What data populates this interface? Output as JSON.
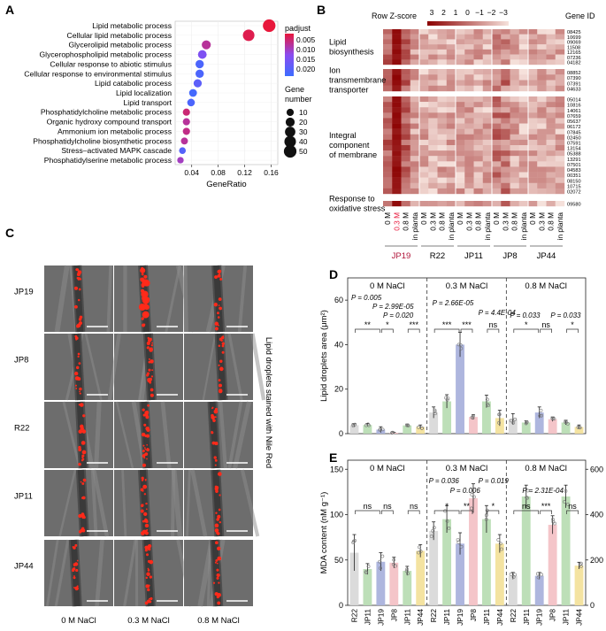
{
  "panels": {
    "A": "A",
    "B": "B",
    "C": "C",
    "D": "D",
    "E": "E"
  },
  "colors": {
    "bar_gray": "#d9d9d9",
    "bar_green": "#b9ddb4",
    "bar_blue": "#aab2dc",
    "bar_pink": "#f3c2c6",
    "bar_yellow": "#f3e19c",
    "dot_red": "#e8173b",
    "dot_purple": "#8a4cf0",
    "dot_blue": "#3c6cff",
    "heat_dark": "#8b0000",
    "heat_light": "#f6e2dc",
    "fluor": "#ff2a1a"
  },
  "chart_data": [
    {
      "id": "A",
      "type": "scatter",
      "title": "",
      "xlabel": "GeneRatio",
      "ylabel": "",
      "xlim": [
        0.015,
        0.17
      ],
      "xticks": [
        0.04,
        0.08,
        0.12,
        0.16
      ],
      "xtick_labels": [
        "0.04",
        "0.08",
        "0.12",
        "0.16"
      ],
      "terms": [
        {
          "term": "Lipid metabolic process",
          "gene_ratio": 0.157,
          "count": 50,
          "padj": 0.001
        },
        {
          "term": "Cellular lipid metabolic process",
          "gene_ratio": 0.126,
          "count": 40,
          "padj": 0.002
        },
        {
          "term": "Glycerolipid metabolic process",
          "gene_ratio": 0.062,
          "count": 20,
          "padj": 0.006
        },
        {
          "term": "Glycerophospholipid metabolic process",
          "gene_ratio": 0.056,
          "count": 18,
          "padj": 0.012
        },
        {
          "term": "Cellular response to abiotic stimulus",
          "gene_ratio": 0.052,
          "count": 16,
          "padj": 0.018
        },
        {
          "term": "Cellular response to environmental stimulus",
          "gene_ratio": 0.052,
          "count": 16,
          "padj": 0.018
        },
        {
          "term": "Lipid catabolic process",
          "gene_ratio": 0.049,
          "count": 15,
          "padj": 0.016
        },
        {
          "term": "Lipid localization",
          "gene_ratio": 0.042,
          "count": 13,
          "padj": 0.019
        },
        {
          "term": "Lipid transport",
          "gene_ratio": 0.039,
          "count": 12,
          "padj": 0.018
        },
        {
          "term": "Phosphatidylcholine metabolic process",
          "gene_ratio": 0.032,
          "count": 10,
          "padj": 0.004
        },
        {
          "term": "Organic hydroxy compound transport",
          "gene_ratio": 0.032,
          "count": 10,
          "padj": 0.006
        },
        {
          "term": "Ammonium ion metabolic process",
          "gene_ratio": 0.032,
          "count": 10,
          "padj": 0.005
        },
        {
          "term": "Phosphatidylcholine biosynthetic process",
          "gene_ratio": 0.029,
          "count": 9,
          "padj": 0.006
        },
        {
          "term": "Stress–activated MAPK cascade",
          "gene_ratio": 0.026,
          "count": 8,
          "padj": 0.017
        },
        {
          "term": "Phosphatidylserine metabolic process",
          "gene_ratio": 0.023,
          "count": 7,
          "padj": 0.008
        }
      ],
      "legend_padj": {
        "title": "padjust",
        "labels": [
          "0.005",
          "0.010",
          "0.015",
          "0.020"
        ]
      },
      "legend_count": {
        "title_line1": "Gene",
        "title_line2": "number",
        "values": [
          10,
          20,
          30,
          40,
          50
        ],
        "labels": [
          "10",
          "20",
          "30",
          "40",
          "50"
        ]
      }
    },
    {
      "id": "B",
      "type": "heatmap",
      "scale_label": "Row Z-score",
      "scale_ticks": [
        "3",
        "2",
        "1",
        "0",
        "−1",
        "−2",
        "−3"
      ],
      "gene_id_header": "Gene ID",
      "groups": [
        {
          "label_lines": [
            "Lipid",
            "biosynthesis"
          ],
          "ids": [
            "08425",
            "10699",
            "09069",
            "11508",
            "12165",
            "07236",
            "04182"
          ]
        },
        {
          "label_lines": [
            "Ion",
            "transmembrane",
            "transporter"
          ],
          "ids": [
            "08852",
            "07390",
            "07391",
            "04633"
          ]
        },
        {
          "label_lines": [
            "Integral",
            "component",
            "of membrane"
          ],
          "ids": [
            "05014",
            "10816",
            "14061",
            "07659",
            "05637",
            "06172",
            "07845",
            "02450",
            "07591",
            "13154",
            "05388",
            "13291",
            "07501",
            "04583",
            "00351",
            "08150",
            "10715",
            "02072"
          ]
        },
        {
          "label_lines": [
            "Response to",
            "oxidative stress"
          ],
          "ids": [
            "09580"
          ]
        }
      ],
      "columns": [
        "0 M",
        "0.3 M",
        "0.8 M",
        "in planta",
        "0 M",
        "0.3 M",
        "0.8 M",
        "in planta",
        "0 M",
        "0.3 M",
        "0.8 M",
        "in planta",
        "0 M",
        "0.3 M",
        "0.8 M",
        "in planta",
        "0 M",
        "0.3 M",
        "0.8 M",
        "in planta"
      ],
      "strains": [
        "JP19",
        "R22",
        "JP11",
        "JP8",
        "JP44"
      ]
    },
    {
      "id": "D",
      "type": "bar",
      "ylabel": "Lipid droplets area (μm²)",
      "ylim": [
        0,
        70
      ],
      "yticks": [
        "0",
        "20",
        "40",
        "60"
      ],
      "sections": [
        {
          "title": "0 M NaCl",
          "categories": [
            "R22",
            "JP11",
            "JP19",
            "JP8",
            "JP11",
            "JP44"
          ],
          "values": [
            3.8,
            3.9,
            1.8,
            0.4,
            3.7,
            3.0
          ],
          "errors": [
            0.6,
            0.7,
            1.3,
            0.2,
            0.6,
            0.9
          ],
          "sig": [
            "**",
            "*",
            "***"
          ],
          "pvals": [
            "P = 0.005",
            "P = 2.99E-05",
            "P = 0.020"
          ]
        },
        {
          "title": "0.3 M NaCl",
          "categories": [
            "R22",
            "JP11",
            "JP19",
            "JP8",
            "JP11",
            "JP44"
          ],
          "values": [
            9.5,
            14.5,
            40.0,
            7.5,
            14.5,
            7.0
          ],
          "errors": [
            2.5,
            3.0,
            5.5,
            1.0,
            2.8,
            3.5
          ],
          "sig": [
            "***",
            "***",
            "ns"
          ],
          "pvals": [
            "P = 2.66E-05",
            "P = 4.4E-04"
          ]
        },
        {
          "title": "0.8 M NaCl",
          "categories": [
            "R22",
            "JP11",
            "JP19",
            "JP8",
            "JP11",
            "JP44"
          ],
          "values": [
            6.5,
            5.0,
            9.5,
            6.5,
            5.0,
            3.0
          ],
          "errors": [
            2.5,
            0.8,
            2.5,
            1.0,
            1.0,
            0.9
          ],
          "sig": [
            "*",
            "ns",
            "*"
          ],
          "pvals": [
            "P = 0.033",
            "P = 0.033"
          ]
        }
      ]
    },
    {
      "id": "E",
      "type": "bar",
      "ylabel": "MDA content (nM g⁻¹)",
      "ylim_left": [
        0,
        160
      ],
      "ylim_right": [
        0,
        640
      ],
      "yticks_left": [
        "0",
        "50",
        "100",
        "150"
      ],
      "yticks_right": [
        "0",
        "200",
        "400",
        "600"
      ],
      "sections": [
        {
          "title": "0 M NaCl",
          "axis": "left",
          "categories": [
            "R22",
            "JP11",
            "JP19",
            "JP8",
            "JP11",
            "JP44"
          ],
          "values": [
            58,
            40,
            48,
            47,
            38,
            60
          ],
          "errors": [
            20,
            6,
            10,
            6,
            5,
            7
          ],
          "sig": [
            "ns",
            "ns",
            "ns"
          ],
          "pvals": []
        },
        {
          "title": "0.3 M NaCl",
          "axis": "left",
          "categories": [
            "R22",
            "JP11",
            "JP19",
            "JP8",
            "JP11",
            "JP44"
          ],
          "values": [
            82,
            95,
            68,
            118,
            95,
            68
          ],
          "errors": [
            10,
            15,
            12,
            16,
            15,
            10
          ],
          "sig": [
            "*",
            "**",
            "*"
          ],
          "pvals": [
            "P = 0.036",
            "P = 0.019",
            "P = 0.006"
          ]
        },
        {
          "title": "0.8 M NaCl",
          "axis": "right",
          "categories": [
            "R22",
            "JP11",
            "JP19",
            "JP8",
            "JP11",
            "JP44"
          ],
          "values": [
            130,
            480,
            130,
            355,
            480,
            175
          ],
          "errors": [
            15,
            50,
            15,
            40,
            50,
            15
          ],
          "sig": [
            "ns",
            "***",
            "ns"
          ],
          "pvals": [
            "P = 2.31E-04"
          ]
        }
      ]
    }
  ],
  "microscopy": {
    "row_labels": [
      "JP19",
      "JP8",
      "R22",
      "JP11",
      "JP44"
    ],
    "col_labels": [
      "0 M NaCl",
      "0.3 M NaCl",
      "0.8 M NaCl"
    ],
    "side_label": "Lipid droplets stained with Nile Red"
  }
}
